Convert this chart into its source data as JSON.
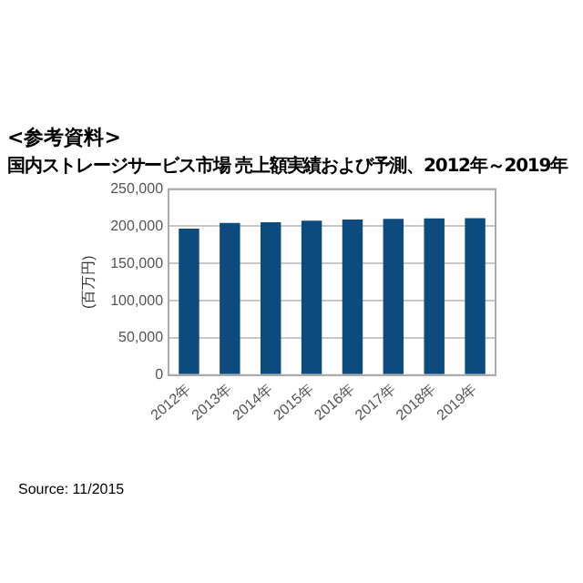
{
  "chart_data": {
    "type": "bar",
    "title": "<参考資料>",
    "subtitle": "国内ストレージサービス市場 売上額実績および予測、2012年～2019年",
    "ylabel": "(百万円)",
    "categories": [
      "2012年",
      "2013年",
      "2014年",
      "2015年",
      "2016年",
      "2017年",
      "2018年",
      "2019年"
    ],
    "values": [
      197000,
      204500,
      205500,
      207500,
      209000,
      210000,
      210500,
      211000
    ],
    "color": "#0d4a7e",
    "ylim": [
      0,
      250000
    ],
    "yticks": [
      {
        "value": 0,
        "label": "0"
      },
      {
        "value": 50000,
        "label": "50,000"
      },
      {
        "value": 100000,
        "label": "100,000"
      },
      {
        "value": 150000,
        "label": "150,000"
      },
      {
        "value": 200000,
        "label": "200,000"
      },
      {
        "value": 250000,
        "label": "250,000"
      }
    ],
    "grid": "y",
    "legend": false,
    "annotations": [
      "Source: 11/2015"
    ]
  }
}
